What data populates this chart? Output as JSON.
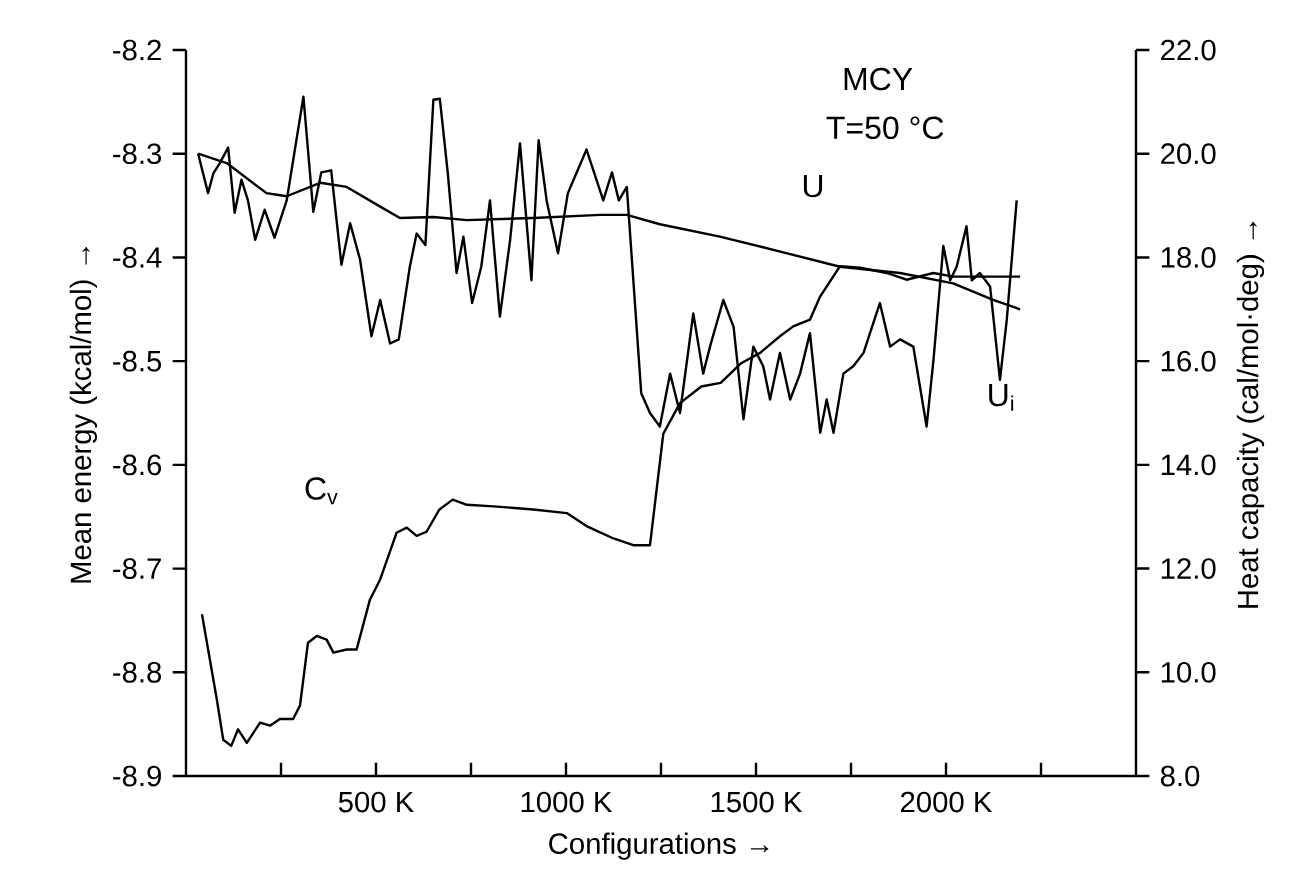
{
  "chart_data": {
    "type": "line",
    "annotations": [
      "MCY",
      "T=50 °C"
    ],
    "xlabel": "Configurations →",
    "ylabel": "Mean energy (kcal/mol) →",
    "y2label": "Heat capacity (cal/mol·deg) →",
    "xlim": [
      0,
      2500
    ],
    "xticks": [
      {
        "value": 250,
        "label": null
      },
      {
        "value": 500,
        "label": "500 K"
      },
      {
        "value": 750,
        "label": null
      },
      {
        "value": 1000,
        "label": "1000 K"
      },
      {
        "value": 1250,
        "label": null
      },
      {
        "value": 1500,
        "label": "1500 K"
      },
      {
        "value": 1750,
        "label": null
      },
      {
        "value": 2000,
        "label": "2000 K"
      },
      {
        "value": 2250,
        "label": null
      }
    ],
    "ylim": [
      -8.9,
      -8.2
    ],
    "yticks": [
      -8.9,
      -8.8,
      -8.7,
      -8.6,
      -8.5,
      -8.4,
      -8.3,
      -8.2
    ],
    "y2lim": [
      8,
      22
    ],
    "y2ticks": [
      {
        "value": 8,
        "label": "8.0"
      },
      {
        "value": 10,
        "label": "10.0"
      },
      {
        "value": 12,
        "label": "12.0"
      },
      {
        "value": 14,
        "label": "14.0"
      },
      {
        "value": 16,
        "label": "16.0"
      },
      {
        "value": 18,
        "label": "18.0"
      },
      {
        "value": 20,
        "label": "20.0"
      },
      {
        "value": 22,
        "label": "22.0"
      }
    ],
    "series": [
      {
        "name": "U",
        "color": "#000000",
        "x": [
          32,
          107,
          212,
          265,
          353,
          423,
          511,
          563,
          651,
          739,
          914,
          1090,
          1160,
          1247,
          1405,
          1582,
          1721,
          1879,
          2019,
          2124,
          2195
        ],
        "values": [
          -8.3,
          -8.309,
          -8.338,
          -8.341,
          -8.328,
          -8.332,
          -8.351,
          -8.362,
          -8.361,
          -8.364,
          -8.362,
          -8.359,
          -8.359,
          -8.368,
          -8.38,
          -8.396,
          -8.409,
          -8.415,
          -8.425,
          -8.441,
          -8.45
        ]
      },
      {
        "name": "U$_{i}$",
        "color": "#000000",
        "x": [
          32,
          58,
          72,
          89,
          111,
          128,
          146,
          163,
          182,
          207,
          233,
          265,
          309,
          335,
          356,
          382,
          409,
          432,
          458,
          488,
          511,
          537,
          560,
          589,
          607,
          630,
          651,
          668,
          689,
          712,
          730,
          753,
          777,
          800,
          826,
          853,
          879,
          909,
          928,
          949,
          979,
          1005,
          1054,
          1098,
          1121,
          1139,
          1160,
          1198,
          1221,
          1247,
          1274,
          1300,
          1335,
          1361,
          1379,
          1414,
          1441,
          1467,
          1493,
          1519,
          1537,
          1563,
          1590,
          1616,
          1642,
          1669,
          1686,
          1704,
          1730,
          1756,
          1783,
          1800,
          1826,
          1853,
          1879,
          1914,
          1949,
          1967,
          1993,
          2011,
          2028,
          2054,
          2068,
          2089,
          2116,
          2142,
          2160,
          2186
        ],
        "values": [
          -8.3,
          -8.338,
          -8.319,
          -8.309,
          -8.294,
          -8.357,
          -8.325,
          -8.345,
          -8.383,
          -8.354,
          -8.381,
          -8.345,
          -8.245,
          -8.356,
          -8.318,
          -8.316,
          -8.407,
          -8.367,
          -8.402,
          -8.476,
          -8.441,
          -8.483,
          -8.479,
          -8.409,
          -8.377,
          -8.388,
          -8.248,
          -8.247,
          -8.319,
          -8.415,
          -8.38,
          -8.444,
          -8.409,
          -8.345,
          -8.457,
          -8.383,
          -8.29,
          -8.422,
          -8.287,
          -8.345,
          -8.396,
          -8.338,
          -8.296,
          -8.345,
          -8.318,
          -8.345,
          -8.332,
          -8.531,
          -8.55,
          -8.563,
          -8.512,
          -8.55,
          -8.454,
          -8.512,
          -8.486,
          -8.441,
          -8.467,
          -8.556,
          -8.486,
          -8.505,
          -8.537,
          -8.492,
          -8.537,
          -8.512,
          -8.473,
          -8.569,
          -8.537,
          -8.569,
          -8.512,
          -8.505,
          -8.492,
          -8.473,
          -8.444,
          -8.486,
          -8.479,
          -8.486,
          -8.563,
          -8.499,
          -8.389,
          -8.422,
          -8.409,
          -8.37,
          -8.422,
          -8.415,
          -8.428,
          -8.518,
          -8.46,
          -8.345
        ]
      },
      {
        "name": "C$_{v}$",
        "color": "#000000",
        "axis": "y2",
        "x": [
          42,
          81,
          98,
          119,
          137,
          160,
          195,
          221,
          247,
          282,
          300,
          321,
          344,
          370,
          388,
          423,
          449,
          484,
          511,
          554,
          581,
          607,
          633,
          667,
          702,
          739,
          809,
          914,
          1002,
          1054,
          1125,
          1177,
          1221,
          1256,
          1300,
          1356,
          1407,
          1461,
          1511,
          1563,
          1598,
          1642,
          1669,
          1721,
          1774,
          1844,
          1896,
          1967,
          2019,
          2089,
          2195
        ],
        "values": [
          11.12,
          9.48,
          8.7,
          8.58,
          8.9,
          8.64,
          9.03,
          8.97,
          9.1,
          9.1,
          9.36,
          10.57,
          10.7,
          10.63,
          10.38,
          10.44,
          10.44,
          11.4,
          11.79,
          12.69,
          12.79,
          12.63,
          12.71,
          13.14,
          13.33,
          13.23,
          13.2,
          13.14,
          13.07,
          12.82,
          12.58,
          12.45,
          12.45,
          14.6,
          15.19,
          15.51,
          15.58,
          15.96,
          16.16,
          16.48,
          16.67,
          16.8,
          17.25,
          17.83,
          17.8,
          17.7,
          17.57,
          17.7,
          17.63,
          17.63,
          17.63
        ]
      }
    ]
  }
}
